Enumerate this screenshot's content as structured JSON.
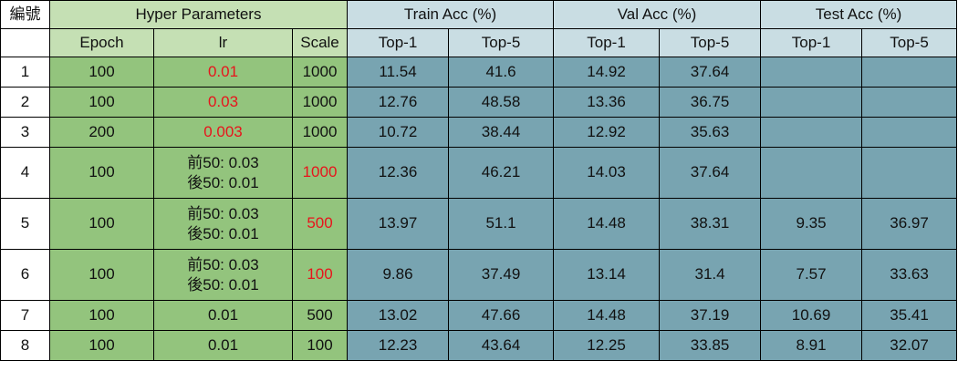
{
  "table": {
    "header_row1": {
      "index": "編號",
      "hyper": "Hyper Parameters",
      "train": "Train Acc (%)",
      "val": "Val Acc (%)",
      "test": "Test Acc (%)"
    },
    "header_row2": {
      "epoch": "Epoch",
      "lr": "lr",
      "scale": "Scale",
      "train_top1": "Top-1",
      "train_top5": "Top-5",
      "val_top1": "Top-1",
      "val_top5": "Top-5",
      "test_top1": "Top-1",
      "test_top5": "Top-5"
    },
    "rows": [
      {
        "id": "1",
        "epoch": "100",
        "lr_line1": "0.01",
        "lr_line2": "",
        "scale": "1000",
        "train_top1": "11.54",
        "train_top5": "41.6",
        "val_top1": "14.92",
        "val_top5": "37.64",
        "test_top1": "",
        "test_top5": ""
      },
      {
        "id": "2",
        "epoch": "100",
        "lr_line1": "0.03",
        "lr_line2": "",
        "scale": "1000",
        "train_top1": "12.76",
        "train_top5": "48.58",
        "val_top1": "13.36",
        "val_top5": "36.75",
        "test_top1": "",
        "test_top5": ""
      },
      {
        "id": "3",
        "epoch": "200",
        "lr_line1": "0.003",
        "lr_line2": "",
        "scale": "1000",
        "train_top1": "10.72",
        "train_top5": "38.44",
        "val_top1": "12.92",
        "val_top5": "35.63",
        "test_top1": "",
        "test_top5": ""
      },
      {
        "id": "4",
        "epoch": "100",
        "lr_line1": "前50: 0.03",
        "lr_line2": "後50: 0.01",
        "scale": "1000",
        "train_top1": "12.36",
        "train_top5": "46.21",
        "val_top1": "14.03",
        "val_top5": "37.64",
        "test_top1": "",
        "test_top5": ""
      },
      {
        "id": "5",
        "epoch": "100",
        "lr_line1": "前50: 0.03",
        "lr_line2": "後50: 0.01",
        "scale": "500",
        "train_top1": "13.97",
        "train_top5": "51.1",
        "val_top1": "14.48",
        "val_top5": "38.31",
        "test_top1": "9.35",
        "test_top5": "36.97"
      },
      {
        "id": "6",
        "epoch": "100",
        "lr_line1": "前50: 0.03",
        "lr_line2": "後50: 0.01",
        "scale": "100",
        "train_top1": "9.86",
        "train_top5": "37.49",
        "val_top1": "13.14",
        "val_top5": "31.4",
        "test_top1": "7.57",
        "test_top5": "33.63"
      },
      {
        "id": "7",
        "epoch": "100",
        "lr_line1": "0.01",
        "lr_line2": "",
        "scale": "500",
        "train_top1": "13.02",
        "train_top5": "47.66",
        "val_top1": "14.48",
        "val_top5": "37.19",
        "test_top1": "10.69",
        "test_top5": "35.41"
      },
      {
        "id": "8",
        "epoch": "100",
        "lr_line1": "0.01",
        "lr_line2": "",
        "scale": "100",
        "train_top1": "12.23",
        "train_top5": "43.64",
        "val_top1": "12.25",
        "val_top5": "33.85",
        "test_top1": "8.91",
        "test_top5": "32.07"
      }
    ]
  },
  "colors": {
    "hyper_header": "#c5e0b4",
    "hyper_cells": "#93c47d",
    "result_header": "#c9dde3",
    "result_cells": "#78a4b1",
    "highlight_text": "#e8141c"
  }
}
